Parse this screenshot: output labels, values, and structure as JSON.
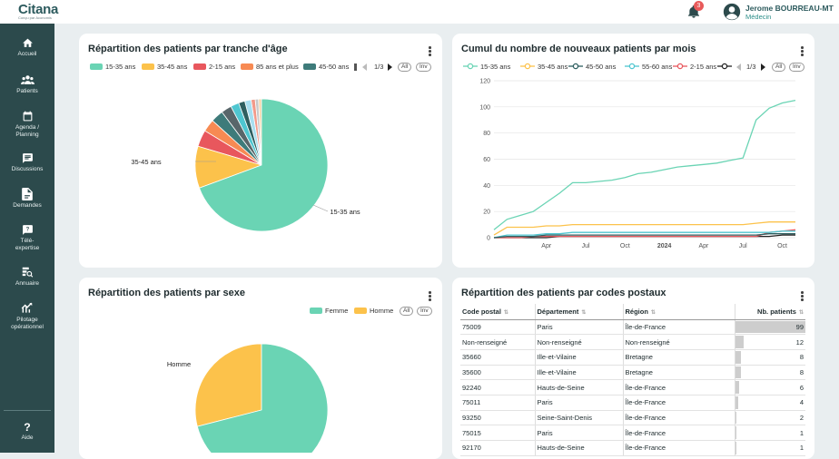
{
  "app": {
    "logo": "Citana",
    "logo_sub": "Conçu par Aconomis",
    "notifications_count": "3",
    "user_name": "Jerome BOURREAU-MT",
    "user_role": "Médecin"
  },
  "sidebar": {
    "items": [
      {
        "label": "Accueil",
        "icon": "home-icon"
      },
      {
        "label": "Patients",
        "icon": "patients-icon"
      },
      {
        "label": "Agenda / Planning",
        "icon": "calendar-icon"
      },
      {
        "label": "Discussions",
        "icon": "chat-icon"
      },
      {
        "label": "Demandes",
        "icon": "document-icon"
      },
      {
        "label": "Télé-expertise",
        "icon": "tele-expertise-icon"
      },
      {
        "label": "Annuaire",
        "icon": "directory-icon"
      },
      {
        "label": "Pilotage opérationnel",
        "icon": "pilotage-icon"
      }
    ],
    "help_label": "Aide"
  },
  "age_card": {
    "title": "Répartition des patients par tranche d'âge",
    "legend": [
      {
        "label": "15-35 ans",
        "color": "#6ad4b4"
      },
      {
        "label": "35-45 ans",
        "color": "#fcc24b"
      },
      {
        "label": "2-15 ans",
        "color": "#e8575d"
      },
      {
        "label": "85 ans et plus",
        "color": "#f78a53"
      },
      {
        "label": "45-50 ans",
        "color": "#3e7b7a"
      }
    ],
    "page": "1/3",
    "all_label": "All",
    "inv_label": "Inv",
    "label_big": "15-35 ans",
    "label_second": "35-45 ans"
  },
  "cumul_card": {
    "title": "Cumul du nombre de nouveaux patients par mois",
    "legend": [
      {
        "label": "15-35 ans",
        "color": "#6ad4b4"
      },
      {
        "label": "35-45 ans",
        "color": "#fcc24b"
      },
      {
        "label": "45-50 ans",
        "color": "#2e5f60"
      },
      {
        "label": "55-60 ans",
        "color": "#4fc6d0"
      },
      {
        "label": "2-15 ans",
        "color": "#e8575d"
      },
      {
        "label": "",
        "color": "#222222"
      }
    ],
    "page": "1/3",
    "all_label": "All",
    "inv_label": "Inv"
  },
  "sexe_card": {
    "title": "Répartition des patients par sexe",
    "legend": [
      {
        "label": "Femme",
        "color": "#6ad4b4"
      },
      {
        "label": "Homme",
        "color": "#fcc24b"
      }
    ],
    "all_label": "All",
    "inv_label": "Inv",
    "label_homme": "Homme"
  },
  "postal_card": {
    "title": "Répartition des patients par codes postaux",
    "columns": [
      "Code postal",
      "Département",
      "Région",
      "Nb. patients"
    ],
    "max_patients": 99,
    "rows": [
      {
        "code": "75009",
        "dept": "Paris",
        "region": "Île-de-France",
        "nb": 99
      },
      {
        "code": "Non-renseigné",
        "dept": "Non-renseigné",
        "region": "Non-renseigné",
        "nb": 12
      },
      {
        "code": "35660",
        "dept": "Ille-et-Vilaine",
        "region": "Bretagne",
        "nb": 8
      },
      {
        "code": "35600",
        "dept": "Ille-et-Vilaine",
        "region": "Bretagne",
        "nb": 8
      },
      {
        "code": "92240",
        "dept": "Hauts-de-Seine",
        "region": "Île-de-France",
        "nb": 6
      },
      {
        "code": "75011",
        "dept": "Paris",
        "region": "Île-de-France",
        "nb": 4
      },
      {
        "code": "93250",
        "dept": "Seine-Saint-Denis",
        "region": "Île-de-France",
        "nb": 2
      },
      {
        "code": "75015",
        "dept": "Paris",
        "region": "Île-de-France",
        "nb": 1
      },
      {
        "code": "92170",
        "dept": "Hauts-de-Seine",
        "region": "Île-de-France",
        "nb": 1
      }
    ]
  },
  "chart_data": [
    {
      "type": "pie",
      "title": "Répartition des patients par tranche d'âge",
      "slices": [
        {
          "label": "15-35 ans",
          "value": 68,
          "color": "#6ad4b4"
        },
        {
          "label": "35-45 ans",
          "value": 10,
          "color": "#fcc24b"
        },
        {
          "label": "2-15 ans",
          "value": 4,
          "color": "#e8575d"
        },
        {
          "label": "85 ans et plus",
          "value": 3,
          "color": "#f78a53"
        },
        {
          "label": "45-50 ans",
          "value": 3,
          "color": "#3e7b7a"
        },
        {
          "label": "",
          "value": 2.5,
          "color": "#58666a"
        },
        {
          "label": "",
          "value": 2,
          "color": "#4fc6d0"
        },
        {
          "label": "",
          "value": 1.5,
          "color": "#2e5f60"
        },
        {
          "label": "",
          "value": 1.5,
          "color": "#a8dff0"
        },
        {
          "label": "",
          "value": 1,
          "color": "#f29a8a"
        },
        {
          "label": "",
          "value": 0.8,
          "color": "#c9c9c9"
        },
        {
          "label": "",
          "value": 0.7,
          "color": "#f4d3a6"
        }
      ]
    },
    {
      "type": "line",
      "title": "Cumul du nombre de nouveaux patients par mois",
      "x": [
        "2022-12",
        "2023-01",
        "2023-02",
        "2023-03",
        "2023-04",
        "2023-05",
        "2023-06",
        "2023-07",
        "2023-08",
        "2023-09",
        "2023-10",
        "2023-11",
        "2023-12",
        "2024-01",
        "2024-02",
        "2024-03",
        "2024-04",
        "2024-05",
        "2024-06",
        "2024-07",
        "2024-08",
        "2024-09",
        "2024-10",
        "2024-11"
      ],
      "x_ticks": [
        "Apr",
        "Jul",
        "Oct",
        "2024",
        "Apr",
        "Jul",
        "Oct"
      ],
      "ylim": [
        0,
        120
      ],
      "y_ticks": [
        0,
        20,
        40,
        60,
        80,
        100,
        120
      ],
      "grid": true,
      "series": [
        {
          "name": "15-35 ans",
          "color": "#6ad4b4",
          "values": [
            6,
            14,
            17,
            20,
            27,
            34,
            42,
            42,
            43,
            44,
            46,
            49,
            50,
            52,
            54,
            55,
            56,
            57,
            59,
            61,
            90,
            99,
            103,
            105
          ]
        },
        {
          "name": "35-45 ans",
          "color": "#fcc24b",
          "values": [
            2,
            8,
            8,
            8,
            9,
            9,
            10,
            10,
            10,
            10,
            10,
            10,
            10,
            10,
            10,
            10,
            10,
            10,
            10,
            10,
            11,
            12,
            12,
            12
          ]
        },
        {
          "name": "45-50 ans",
          "color": "#2e5f60",
          "values": [
            0,
            1,
            1,
            1,
            2,
            2,
            2,
            2,
            2,
            2,
            2,
            2,
            2,
            2,
            2,
            2,
            2,
            2,
            2,
            2,
            2,
            3,
            3,
            3
          ]
        },
        {
          "name": "55-60 ans",
          "color": "#4fc6d0",
          "values": [
            0,
            2,
            2,
            2,
            3,
            3,
            4,
            4,
            4,
            4,
            4,
            4,
            4,
            4,
            4,
            4,
            4,
            4,
            4,
            4,
            4,
            4,
            5,
            5
          ]
        },
        {
          "name": "2-15 ans",
          "color": "#e8575d",
          "values": [
            0,
            0,
            0,
            1,
            1,
            1,
            1,
            1,
            1,
            1,
            1,
            1,
            1,
            1,
            1,
            1,
            1,
            1,
            1,
            1,
            1,
            4,
            5,
            6
          ]
        },
        {
          "name": "",
          "color": "#222222",
          "values": [
            0,
            0,
            0,
            0,
            0,
            1,
            1,
            1,
            1,
            1,
            1,
            1,
            1,
            1,
            1,
            1,
            1,
            1,
            1,
            1,
            1,
            1,
            2,
            2
          ]
        }
      ]
    },
    {
      "type": "pie",
      "title": "Répartition des patients par sexe",
      "slices": [
        {
          "label": "Femme",
          "value": 71,
          "color": "#6ad4b4"
        },
        {
          "label": "Homme",
          "value": 29,
          "color": "#fcc24b"
        }
      ]
    }
  ]
}
